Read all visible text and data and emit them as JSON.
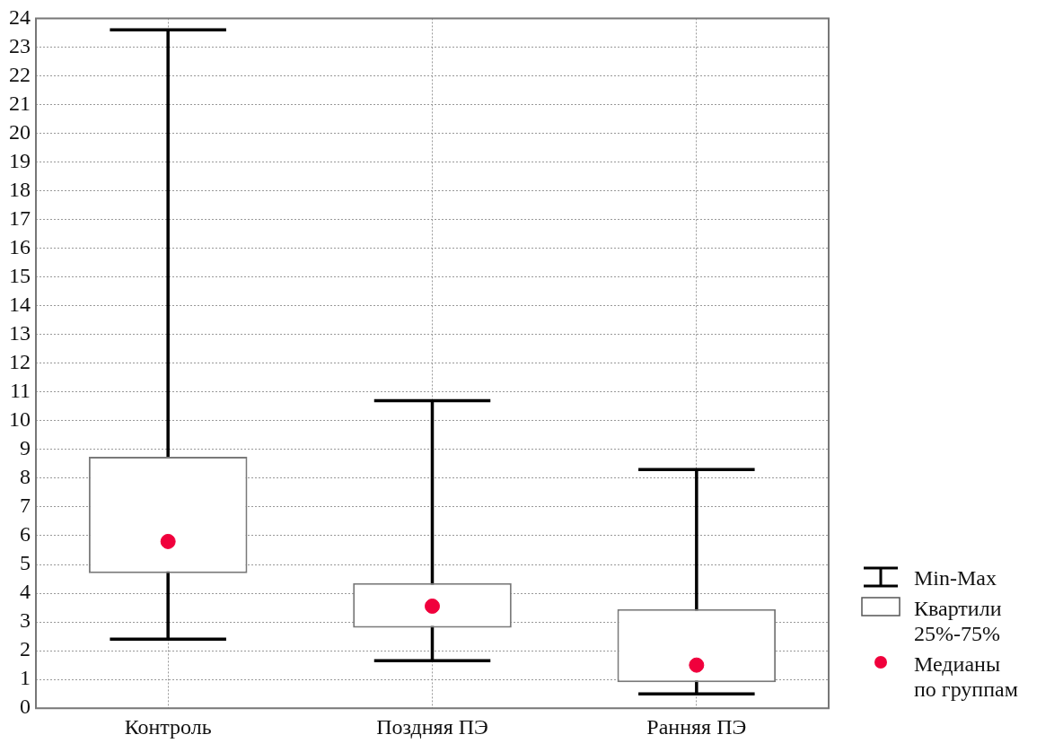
{
  "chart_data": {
    "type": "box",
    "categories": [
      "Контроль",
      "Поздняя ПЭ",
      "Ранняя ПЭ"
    ],
    "series": [
      {
        "color": "#7a7a7a",
        "boxes": [
          {
            "low": 2.4,
            "q1": 4.7,
            "median": 5.8,
            "q3": 8.75,
            "high": 23.6
          },
          {
            "low": 1.65,
            "q1": 2.8,
            "median": 3.55,
            "q3": 4.35,
            "high": 10.7
          },
          {
            "low": 0.5,
            "q1": 0.9,
            "median": 1.5,
            "q3": 3.45,
            "high": 8.3
          }
        ]
      }
    ],
    "ylim": [
      0,
      24
    ],
    "yticks": [
      0,
      1,
      2,
      3,
      4,
      5,
      6,
      7,
      8,
      9,
      10,
      11,
      12,
      13,
      14,
      15,
      16,
      17,
      18,
      19,
      20,
      21,
      22,
      23,
      24
    ],
    "grid": true,
    "annotations": [
      "Min-Max",
      "Квартили 25%-75%",
      "Медианы по группам"
    ]
  }
}
